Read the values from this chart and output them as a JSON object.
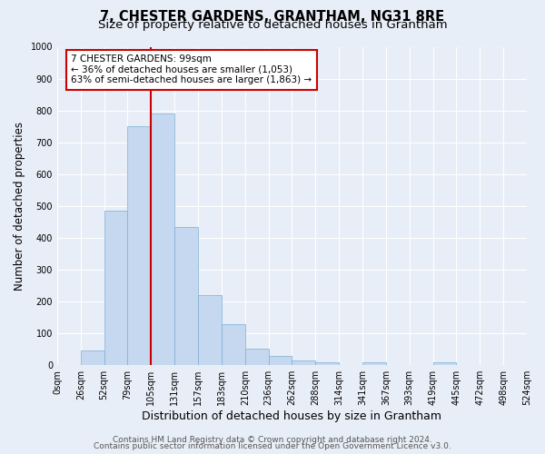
{
  "title": "7, CHESTER GARDENS, GRANTHAM, NG31 8RE",
  "subtitle": "Size of property relative to detached houses in Grantham",
  "xlabel": "Distribution of detached houses by size in Grantham",
  "ylabel": "Number of detached properties",
  "bin_labels": [
    "0sqm",
    "26sqm",
    "52sqm",
    "79sqm",
    "105sqm",
    "131sqm",
    "157sqm",
    "183sqm",
    "210sqm",
    "236sqm",
    "262sqm",
    "288sqm",
    "314sqm",
    "341sqm",
    "367sqm",
    "393sqm",
    "419sqm",
    "445sqm",
    "472sqm",
    "498sqm",
    "524sqm"
  ],
  "bar_values": [
    0,
    45,
    485,
    750,
    790,
    435,
    220,
    128,
    52,
    30,
    15,
    10,
    0,
    8,
    0,
    0,
    10,
    0,
    0,
    0
  ],
  "bar_color": "#c5d8ef",
  "bar_edge_color": "#7aafd4",
  "vline_x": 4,
  "vline_color": "#cc0000",
  "ylim": [
    0,
    1000
  ],
  "yticks": [
    0,
    100,
    200,
    300,
    400,
    500,
    600,
    700,
    800,
    900,
    1000
  ],
  "annotation_title": "7 CHESTER GARDENS: 99sqm",
  "annotation_line1": "← 36% of detached houses are smaller (1,053)",
  "annotation_line2": "63% of semi-detached houses are larger (1,863) →",
  "annotation_box_color": "#ffffff",
  "annotation_box_edgecolor": "#cc0000",
  "footer1": "Contains HM Land Registry data © Crown copyright and database right 2024.",
  "footer2": "Contains public sector information licensed under the Open Government Licence v3.0.",
  "bg_color": "#e8eef7",
  "plot_bg_color": "#e8eef7",
  "grid_color": "#ffffff",
  "title_fontsize": 10.5,
  "subtitle_fontsize": 9.5,
  "xlabel_fontsize": 9,
  "ylabel_fontsize": 8.5,
  "tick_fontsize": 7,
  "footer_fontsize": 6.5,
  "annot_fontsize": 7.5
}
